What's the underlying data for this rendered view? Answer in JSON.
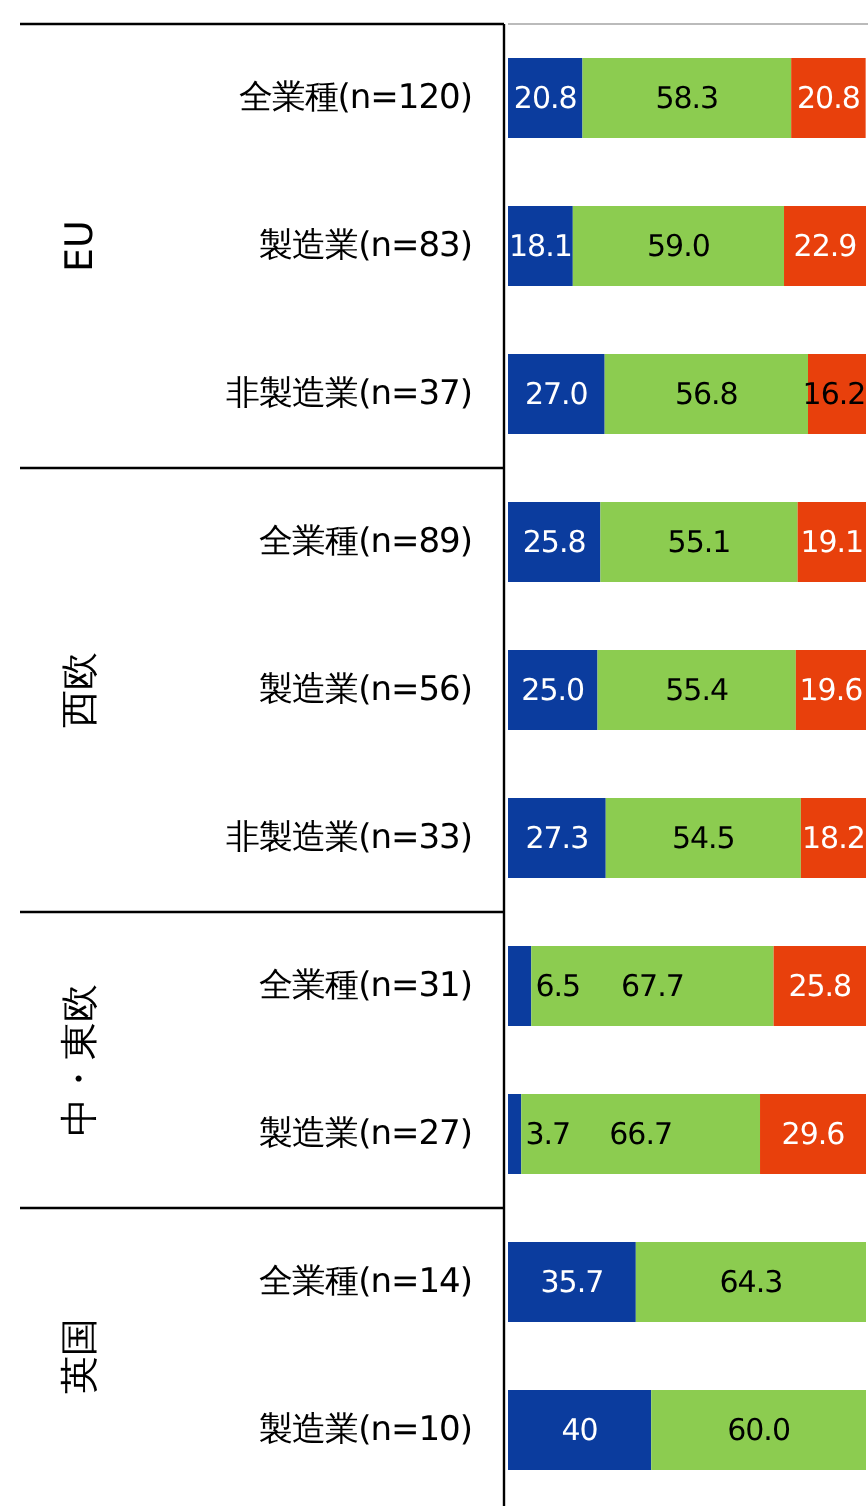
{
  "chart_data": [
    {
      "type": "bar",
      "orientation": "horizontal",
      "stacked": true,
      "title": "EU",
      "categories": [
        "全業種(n=120)",
        "製造業(n=83)",
        "非製造業(n=37)"
      ],
      "series": [
        {
          "color": "#0b3c9e",
          "values": [
            20.8,
            18.1,
            27.0
          ],
          "value_labels": [
            "20.8",
            "18.1",
            "27.0"
          ]
        },
        {
          "color": "#8ccc50",
          "values": [
            58.3,
            59.0,
            56.8
          ],
          "value_labels": [
            "58.3",
            "59.0",
            "56.8"
          ]
        },
        {
          "color": "#e8400c",
          "values": [
            20.8,
            22.9,
            16.2
          ],
          "value_labels": [
            "20.8",
            "22.9",
            "16.2"
          ]
        }
      ]
    },
    {
      "type": "bar",
      "orientation": "horizontal",
      "stacked": true,
      "title": "西欧",
      "categories": [
        "全業種(n=89)",
        "製造業(n=56)",
        "非製造業(n=33)"
      ],
      "series": [
        {
          "color": "#0b3c9e",
          "values": [
            25.8,
            25.0,
            27.3
          ],
          "value_labels": [
            "25.8",
            "25.0",
            "27.3"
          ]
        },
        {
          "color": "#8ccc50",
          "values": [
            55.1,
            55.4,
            54.5
          ],
          "value_labels": [
            "55.1",
            "55.4",
            "54.5"
          ]
        },
        {
          "color": "#e8400c",
          "values": [
            19.1,
            19.6,
            18.2
          ],
          "value_labels": [
            "19.1",
            "19.6",
            "18.2"
          ]
        }
      ]
    },
    {
      "type": "bar",
      "orientation": "horizontal",
      "stacked": true,
      "title": "中・東欧",
      "categories": [
        "全業種(n=31)",
        "製造業(n=27)"
      ],
      "series": [
        {
          "color": "#0b3c9e",
          "values": [
            6.5,
            3.7
          ],
          "value_labels": [
            "6.5",
            "3.7"
          ]
        },
        {
          "color": "#8ccc50",
          "values": [
            67.7,
            66.7
          ],
          "value_labels": [
            "67.7",
            "66.7"
          ]
        },
        {
          "color": "#e8400c",
          "values": [
            25.8,
            29.6
          ],
          "value_labels": [
            "25.8",
            "29.6"
          ]
        }
      ]
    },
    {
      "type": "bar",
      "orientation": "horizontal",
      "stacked": true,
      "title": "英国",
      "categories": [
        "全業種(n=14)",
        "製造業(n=10)"
      ],
      "series": [
        {
          "color": "#0b3c9e",
          "values": [
            35.7,
            40
          ],
          "value_labels": [
            "35.7",
            "40"
          ]
        },
        {
          "color": "#8ccc50",
          "values": [
            64.3,
            60.0
          ],
          "value_labels": [
            "64.3",
            "60.0"
          ]
        }
      ]
    }
  ]
}
